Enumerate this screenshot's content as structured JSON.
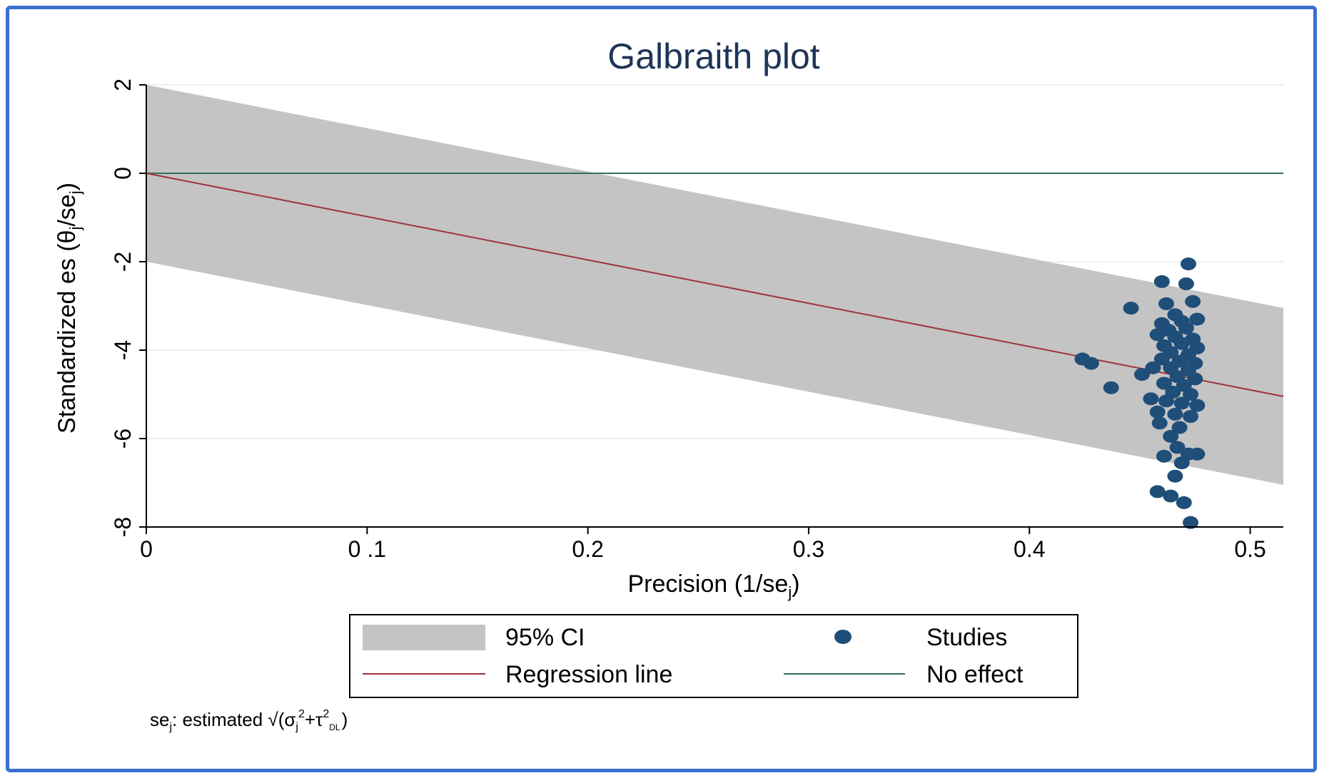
{
  "chart_data": {
    "type": "scatter",
    "title": "Galbraith plot",
    "xlabel": {
      "main": "Precision (1/se",
      "sub": "j",
      "end": ")"
    },
    "ylabel": {
      "main": "Standardized es  (θ",
      "sub": "j",
      "mid": "/se",
      "sub2": "j",
      "end": ")"
    },
    "xlim": [
      0,
      0.515
    ],
    "ylim": [
      -8,
      2
    ],
    "xticks": [
      {
        "value": 0,
        "label": "0"
      },
      {
        "value": 0.1,
        "label": "0 .1"
      },
      {
        "value": 0.2,
        "label": "0.2"
      },
      {
        "value": 0.3,
        "label": "0.3"
      },
      {
        "value": 0.4,
        "label": "0.4"
      },
      {
        "value": 0.5,
        "label": "0.5"
      }
    ],
    "yticks": [
      {
        "value": 2,
        "label": "2"
      },
      {
        "value": 0,
        "label": "0"
      },
      {
        "value": -2,
        "label": "-2"
      },
      {
        "value": -4,
        "label": "-4"
      },
      {
        "value": -6,
        "label": "-6"
      },
      {
        "value": -8,
        "label": "-8"
      }
    ],
    "grid": true,
    "ci_band": {
      "intercept_upper": 2,
      "intercept_lower": -2,
      "slope": -9.8,
      "color": "#c4c4c4"
    },
    "regression_line": {
      "intercept": 0,
      "slope": -9.8,
      "color": "#a0323c"
    },
    "no_effect_line": {
      "y": 0,
      "color": "#2f6f5e"
    },
    "points": [
      [
        0.472,
        -2.05
      ],
      [
        0.46,
        -2.45
      ],
      [
        0.471,
        -2.5
      ],
      [
        0.462,
        -2.95
      ],
      [
        0.474,
        -2.9
      ],
      [
        0.446,
        -3.05
      ],
      [
        0.466,
        -3.2
      ],
      [
        0.46,
        -3.4
      ],
      [
        0.469,
        -3.35
      ],
      [
        0.476,
        -3.3
      ],
      [
        0.463,
        -3.55
      ],
      [
        0.471,
        -3.5
      ],
      [
        0.458,
        -3.65
      ],
      [
        0.466,
        -3.7
      ],
      [
        0.474,
        -3.75
      ],
      [
        0.461,
        -3.9
      ],
      [
        0.469,
        -3.85
      ],
      [
        0.476,
        -3.95
      ],
      [
        0.464,
        -4.05
      ],
      [
        0.472,
        -4.1
      ],
      [
        0.46,
        -4.2
      ],
      [
        0.468,
        -4.25
      ],
      [
        0.475,
        -4.3
      ],
      [
        0.424,
        -4.2
      ],
      [
        0.428,
        -4.3
      ],
      [
        0.456,
        -4.4
      ],
      [
        0.464,
        -4.4
      ],
      [
        0.472,
        -4.45
      ],
      [
        0.451,
        -4.55
      ],
      [
        0.467,
        -4.6
      ],
      [
        0.475,
        -4.65
      ],
      [
        0.461,
        -4.75
      ],
      [
        0.47,
        -4.8
      ],
      [
        0.437,
        -4.85
      ],
      [
        0.465,
        -4.95
      ],
      [
        0.473,
        -5.0
      ],
      [
        0.455,
        -5.1
      ],
      [
        0.462,
        -5.15
      ],
      [
        0.469,
        -5.2
      ],
      [
        0.476,
        -5.25
      ],
      [
        0.458,
        -5.4
      ],
      [
        0.466,
        -5.45
      ],
      [
        0.473,
        -5.5
      ],
      [
        0.459,
        -5.65
      ],
      [
        0.468,
        -5.75
      ],
      [
        0.464,
        -5.95
      ],
      [
        0.467,
        -6.2
      ],
      [
        0.461,
        -6.4
      ],
      [
        0.472,
        -6.35
      ],
      [
        0.476,
        -6.35
      ],
      [
        0.469,
        -6.55
      ],
      [
        0.466,
        -6.85
      ],
      [
        0.458,
        -7.2
      ],
      [
        0.464,
        -7.3
      ],
      [
        0.47,
        -7.45
      ],
      [
        0.473,
        -7.9
      ]
    ],
    "point_color": "#1f4e79",
    "legend": {
      "position": "bottom",
      "items": [
        {
          "label": "95% CI",
          "kind": "band"
        },
        {
          "label": "Studies",
          "kind": "marker"
        },
        {
          "label": "Regression line",
          "kind": "line"
        },
        {
          "label": "No effect",
          "kind": "line"
        }
      ]
    },
    "note": {
      "prefix": "se",
      "sub": "j",
      "text": ": estimated √(σ",
      "sub2": "j",
      "sup2": "2",
      "plus": "+τ",
      "sup3": "2",
      "sub3": "DL",
      "end": ")"
    }
  }
}
